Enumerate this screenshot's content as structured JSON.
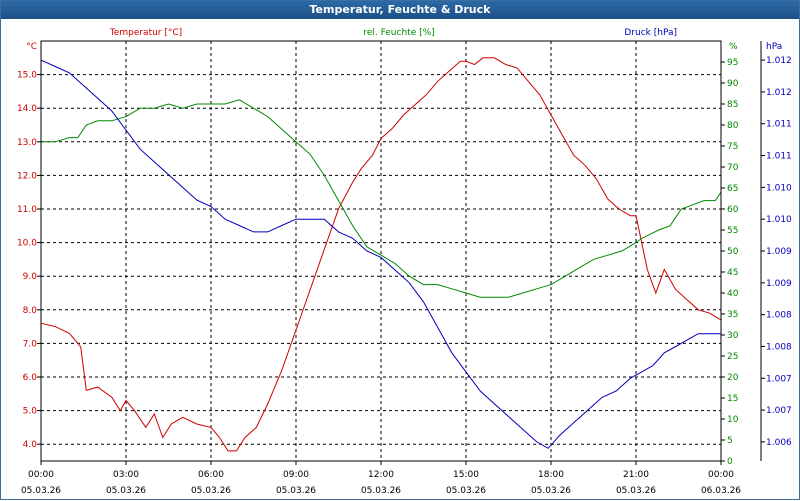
{
  "window": {
    "title": "Temperatur, Feuchte & Druck"
  },
  "colors": {
    "temp": "#cc0000",
    "hum": "#008800",
    "press": "#0000bb",
    "grid": "#000000",
    "text": "#000000"
  },
  "chart_data": {
    "type": "line",
    "title": "Temperatur, Feuchte & Druck",
    "x_time_labels": [
      "00:00",
      "03:00",
      "06:00",
      "09:00",
      "12:00",
      "15:00",
      "18:00",
      "21:00",
      "00:00"
    ],
    "x_date_labels": [
      "05.03.26",
      "05.03.26",
      "05.03.26",
      "05.03.26",
      "05.03.26",
      "05.03.26",
      "05.03.26",
      "05.03.26",
      "06.03.26"
    ],
    "xlim_hours": [
      0,
      24
    ],
    "axes": {
      "temp": {
        "label": "Temperatur [°C]",
        "unit": "°C",
        "ylim": [
          3.5,
          16.0
        ],
        "ticks": [
          "4.0",
          "5.0",
          "6.0",
          "7.0",
          "8.0",
          "9.0",
          "10.0",
          "11.0",
          "12.0",
          "13.0",
          "14.0",
          "15.0"
        ],
        "tick_values": [
          4,
          5,
          6,
          7,
          8,
          9,
          10,
          11,
          12,
          13,
          14,
          15
        ]
      },
      "hum": {
        "label": "rel. Feuchte [%]",
        "unit": "%",
        "ylim": [
          0,
          100
        ],
        "ticks": [
          "0",
          "5",
          "10",
          "15",
          "20",
          "25",
          "30",
          "35",
          "40",
          "45",
          "50",
          "55",
          "60",
          "65",
          "70",
          "75",
          "80",
          "85",
          "90",
          "95"
        ],
        "tick_values": [
          0,
          5,
          10,
          15,
          20,
          25,
          30,
          35,
          40,
          45,
          50,
          55,
          60,
          65,
          70,
          75,
          80,
          85,
          90,
          95
        ]
      },
      "press": {
        "label": "Druck [hPa]",
        "unit": "hPa",
        "ylim": [
          1.0057,
          1.0123
        ],
        "ticks": [
          "1.006",
          "1.007",
          "1.007",
          "1.008",
          "1.008",
          "1.009",
          "1.009",
          "1.010",
          "1.010",
          "1.011",
          "1.011",
          "1.012",
          "1.012"
        ],
        "tick_values": [
          1.006,
          1.0065,
          1.007,
          1.0075,
          1.008,
          1.0085,
          1.009,
          1.0095,
          1.01,
          1.0105,
          1.011,
          1.0115,
          1.012
        ]
      }
    },
    "series": [
      {
        "name": "Temperatur",
        "axis": "temp",
        "x": [
          0,
          0.5,
          1,
          1.4,
          1.6,
          2,
          2.5,
          2.8,
          3,
          3.3,
          3.7,
          4,
          4.3,
          4.6,
          5,
          5.5,
          6,
          6.3,
          6.6,
          6.9,
          7.2,
          7.6,
          8,
          8.5,
          9,
          9.5,
          10,
          10.5,
          11,
          11.3,
          11.7,
          12,
          12.4,
          12.8,
          13.2,
          13.6,
          14,
          14.4,
          14.8,
          15,
          15.3,
          15.6,
          16,
          16.4,
          16.8,
          17.2,
          17.6,
          18,
          18.4,
          18.8,
          19.2,
          19.6,
          20,
          20.4,
          20.8,
          21,
          21.2,
          21.4,
          21.7,
          22,
          22.4,
          22.8,
          23.2,
          23.6,
          24
        ],
        "values": [
          7.6,
          7.5,
          7.3,
          6.9,
          5.6,
          5.7,
          5.4,
          5.0,
          5.3,
          5.0,
          4.5,
          4.9,
          4.2,
          4.6,
          4.8,
          4.6,
          4.5,
          4.2,
          3.8,
          3.8,
          4.2,
          4.5,
          5.2,
          6.2,
          7.4,
          8.6,
          9.8,
          11.0,
          11.8,
          12.2,
          12.6,
          13.1,
          13.4,
          13.8,
          14.1,
          14.4,
          14.8,
          15.1,
          15.4,
          15.4,
          15.3,
          15.5,
          15.5,
          15.3,
          15.2,
          14.8,
          14.4,
          13.8,
          13.2,
          12.6,
          12.3,
          11.9,
          11.3,
          11.0,
          10.8,
          10.8,
          10.0,
          9.2,
          8.5,
          9.2,
          8.6,
          8.3,
          8.0,
          7.9,
          7.7
        ]
      },
      {
        "name": "rel. Feuchte",
        "axis": "hum",
        "x": [
          0,
          0.5,
          1,
          1.3,
          1.6,
          2,
          2.5,
          3,
          3.5,
          4,
          4.5,
          5,
          5.5,
          6,
          6.5,
          7,
          7.5,
          8,
          8.5,
          9,
          9.5,
          10,
          10.5,
          11,
          11.5,
          12,
          12.5,
          13,
          13.5,
          14,
          14.5,
          15,
          15.5,
          16,
          16.5,
          17,
          17.5,
          18,
          18.5,
          19,
          19.5,
          20,
          20.5,
          21,
          21.2,
          21.5,
          21.8,
          22.2,
          22.6,
          23,
          23.4,
          23.8,
          24
        ],
        "values": [
          76,
          76,
          77,
          77,
          80,
          81,
          81,
          82,
          84,
          84,
          85,
          84,
          85,
          85,
          85,
          86,
          84,
          82,
          79,
          76,
          73,
          68,
          62,
          56,
          51,
          49,
          47,
          44,
          42,
          42,
          41,
          40,
          39,
          39,
          39,
          40,
          41,
          42,
          44,
          46,
          48,
          49,
          50,
          52,
          53,
          54,
          55,
          56,
          60,
          61,
          62,
          62,
          64
        ]
      },
      {
        "name": "Druck",
        "axis": "press",
        "x": [
          0,
          0.5,
          1,
          1.5,
          2,
          2.5,
          3,
          3.5,
          4,
          4.5,
          5,
          5.5,
          6,
          6.5,
          7,
          7.5,
          8,
          8.5,
          9,
          9.5,
          10,
          10.5,
          11,
          11.5,
          12,
          12.5,
          13,
          13.5,
          14,
          14.5,
          15,
          15.5,
          16,
          16.5,
          17,
          17.5,
          17.9,
          18.3,
          18.8,
          19.3,
          19.8,
          20.3,
          20.8,
          21.2,
          21.6,
          22,
          22.4,
          22.8,
          23.2,
          23.6,
          24
        ],
        "values": [
          1.012,
          1.0119,
          1.0118,
          1.0116,
          1.0114,
          1.0112,
          1.0109,
          1.0106,
          1.0104,
          1.0102,
          1.01,
          1.0098,
          1.0097,
          1.0095,
          1.0094,
          1.0093,
          1.0093,
          1.0094,
          1.0095,
          1.0095,
          1.0095,
          1.0093,
          1.0092,
          1.009,
          1.0089,
          1.0087,
          1.0085,
          1.0082,
          1.0078,
          1.0074,
          1.0071,
          1.0068,
          1.0066,
          1.0064,
          1.0062,
          1.006,
          1.0059,
          1.0061,
          1.0063,
          1.0065,
          1.0067,
          1.0068,
          1.007,
          1.0071,
          1.0072,
          1.0074,
          1.0075,
          1.0076,
          1.0077,
          1.0077,
          1.0077
        ]
      }
    ]
  }
}
